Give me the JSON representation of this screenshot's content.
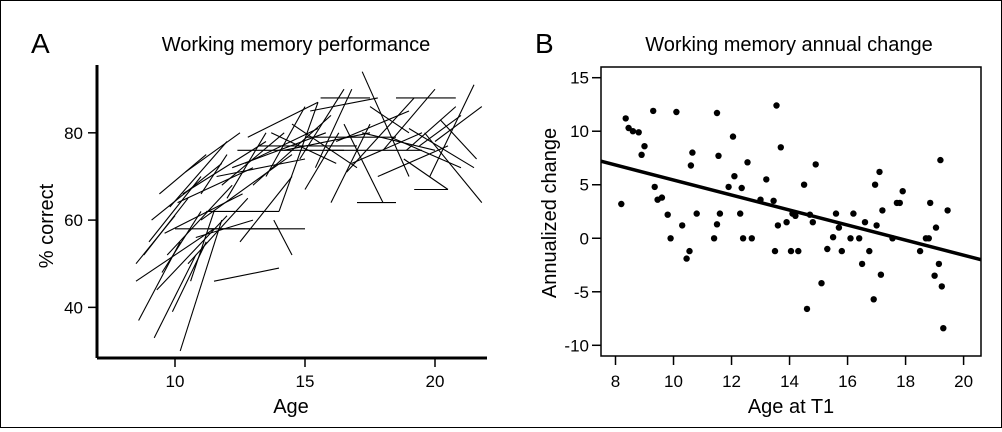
{
  "chart_data": [
    {
      "type": "line",
      "panel_label": "A",
      "title": "Working memory performance",
      "xlabel": "Age",
      "ylabel": "% correct",
      "xlim": [
        7,
        22
      ],
      "ylim": [
        30,
        96
      ],
      "xticks": [
        10,
        15,
        20
      ],
      "yticks": [
        40,
        60,
        80
      ],
      "series_style": "individual subject trajectories (spaghetti plot)",
      "segments": [
        [
          8.5,
          50,
          10.0,
          61
        ],
        [
          8.5,
          46,
          11.5,
          58
        ],
        [
          8.8,
          52,
          10.5,
          65
        ],
        [
          8.6,
          37,
          10.2,
          55
        ],
        [
          9.0,
          55,
          11.0,
          70
        ],
        [
          9.1,
          60,
          11.8,
          73
        ],
        [
          9.2,
          33,
          10.8,
          52
        ],
        [
          9.3,
          44,
          12.0,
          61
        ],
        [
          9.5,
          48,
          11.0,
          62
        ],
        [
          9.6,
          57,
          12.6,
          66
        ],
        [
          9.7,
          52,
          12.2,
          68
        ],
        [
          9.8,
          63,
          12.0,
          78
        ],
        [
          9.9,
          39,
          11.2,
          55
        ],
        [
          10.0,
          58,
          14.0,
          58
        ],
        [
          10.1,
          64,
          13.0,
          72
        ],
        [
          10.2,
          30,
          11.8,
          60
        ],
        [
          10.3,
          66,
          13.5,
          78
        ],
        [
          10.4,
          71,
          12.5,
          80
        ],
        [
          10.5,
          50,
          12.8,
          65
        ],
        [
          10.6,
          46,
          11.5,
          62
        ],
        [
          10.8,
          56,
          13.0,
          60
        ],
        [
          11.0,
          60,
          14.5,
          75
        ],
        [
          11.2,
          62,
          14.0,
          62
        ],
        [
          11.3,
          58,
          15.0,
          58
        ],
        [
          11.5,
          46,
          14.0,
          49
        ],
        [
          11.6,
          70,
          15.0,
          74
        ],
        [
          11.8,
          68,
          14.2,
          80
        ],
        [
          12.0,
          65,
          13.5,
          80
        ],
        [
          12.2,
          72,
          15.8,
          80
        ],
        [
          12.4,
          76,
          16.5,
          76
        ],
        [
          12.5,
          55,
          14.5,
          70
        ],
        [
          12.7,
          73,
          15.5,
          81
        ],
        [
          13.0,
          68,
          16.0,
          84
        ],
        [
          13.2,
          77,
          17.0,
          77
        ],
        [
          13.5,
          70,
          15.0,
          86
        ],
        [
          13.7,
          80,
          16.2,
          73
        ],
        [
          14.0,
          62,
          15.5,
          87
        ],
        [
          14.2,
          76,
          17.5,
          80
        ],
        [
          14.5,
          82,
          17.0,
          72
        ],
        [
          14.8,
          74,
          16.5,
          90
        ],
        [
          15.0,
          79,
          18.5,
          79
        ],
        [
          15.2,
          85,
          17.8,
          88
        ],
        [
          15.4,
          72,
          16.8,
          90
        ],
        [
          15.6,
          88,
          17.5,
          88
        ],
        [
          15.8,
          76,
          19.5,
          76
        ],
        [
          16.0,
          64,
          17.5,
          82
        ],
        [
          16.2,
          78,
          19.0,
          85
        ],
        [
          16.5,
          82,
          18.0,
          64
        ],
        [
          16.8,
          73,
          19.5,
          80
        ],
        [
          17.0,
          64,
          18.5,
          64
        ],
        [
          17.2,
          80,
          20.0,
          76
        ],
        [
          17.5,
          86,
          19.0,
          80
        ],
        [
          17.8,
          70,
          20.5,
          77
        ],
        [
          18.0,
          76,
          20.0,
          90
        ],
        [
          18.3,
          79,
          21.0,
          72
        ],
        [
          18.5,
          88,
          20.8,
          88
        ],
        [
          18.8,
          74,
          20.5,
          67
        ],
        [
          19.0,
          81,
          21.5,
          72
        ],
        [
          19.2,
          67,
          20.5,
          67
        ],
        [
          19.4,
          77,
          21.0,
          84
        ],
        [
          19.6,
          80,
          21.8,
          64
        ],
        [
          19.8,
          70,
          21.5,
          91
        ],
        [
          20.0,
          78,
          21.8,
          86
        ],
        [
          20.2,
          83,
          21.6,
          74
        ],
        [
          17.2,
          94,
          19.0,
          70
        ],
        [
          13.8,
          60,
          14.5,
          52
        ],
        [
          11.0,
          66,
          12.0,
          75
        ],
        [
          9.4,
          66,
          11.2,
          75
        ],
        [
          12.8,
          79,
          15.5,
          87
        ],
        [
          15.0,
          67,
          16.3,
          80
        ],
        [
          16.6,
          71,
          19.2,
          88
        ],
        [
          18.9,
          76,
          20.8,
          86
        ]
      ]
    },
    {
      "type": "scatter",
      "panel_label": "B",
      "title": "Working memory annual change",
      "xlabel": "Age at T1",
      "ylabel": "Annualized change",
      "xlim": [
        7.5,
        20.6
      ],
      "ylim": [
        -11,
        16
      ],
      "xticks": [
        8,
        10,
        12,
        14,
        16,
        18,
        20
      ],
      "yticks": [
        -10,
        -5,
        0,
        5,
        10,
        15
      ],
      "fit_line": {
        "x": [
          7.5,
          20.6
        ],
        "y": [
          7.2,
          -2.0
        ]
      },
      "points": [
        [
          8.2,
          3.2
        ],
        [
          8.35,
          11.2
        ],
        [
          8.45,
          10.3
        ],
        [
          8.6,
          10.0
        ],
        [
          8.8,
          9.9
        ],
        [
          8.9,
          7.8
        ],
        [
          9.0,
          8.6
        ],
        [
          9.3,
          11.9
        ],
        [
          9.35,
          4.8
        ],
        [
          9.45,
          3.6
        ],
        [
          9.6,
          3.8
        ],
        [
          9.8,
          2.2
        ],
        [
          9.9,
          0.0
        ],
        [
          10.1,
          11.8
        ],
        [
          10.3,
          1.2
        ],
        [
          10.45,
          -1.9
        ],
        [
          10.55,
          -1.2
        ],
        [
          10.6,
          6.8
        ],
        [
          10.65,
          8.0
        ],
        [
          10.8,
          2.3
        ],
        [
          11.4,
          0.0
        ],
        [
          11.5,
          11.7
        ],
        [
          11.55,
          7.7
        ],
        [
          11.5,
          1.3
        ],
        [
          11.6,
          2.3
        ],
        [
          11.9,
          4.8
        ],
        [
          12.05,
          9.5
        ],
        [
          12.1,
          5.8
        ],
        [
          12.3,
          2.3
        ],
        [
          12.35,
          4.7
        ],
        [
          12.4,
          0.0
        ],
        [
          12.55,
          7.1
        ],
        [
          12.7,
          0.0
        ],
        [
          13.0,
          3.6
        ],
        [
          13.2,
          5.5
        ],
        [
          13.45,
          3.5
        ],
        [
          13.55,
          12.4
        ],
        [
          13.7,
          8.5
        ],
        [
          13.6,
          1.2
        ],
        [
          13.5,
          -1.2
        ],
        [
          13.9,
          1.5
        ],
        [
          14.1,
          2.3
        ],
        [
          14.05,
          -1.2
        ],
        [
          14.2,
          2.1
        ],
        [
          14.3,
          -1.2
        ],
        [
          14.5,
          5.0
        ],
        [
          14.6,
          -6.6
        ],
        [
          14.7,
          2.2
        ],
        [
          14.8,
          1.5
        ],
        [
          14.9,
          6.9
        ],
        [
          15.1,
          -4.2
        ],
        [
          15.3,
          -1.0
        ],
        [
          15.5,
          0.1
        ],
        [
          15.6,
          2.3
        ],
        [
          15.7,
          1.0
        ],
        [
          15.8,
          -1.2
        ],
        [
          16.1,
          0.0
        ],
        [
          16.2,
          2.3
        ],
        [
          16.4,
          0.0
        ],
        [
          16.5,
          -2.4
        ],
        [
          16.6,
          1.5
        ],
        [
          16.75,
          -1.2
        ],
        [
          16.9,
          -5.7
        ],
        [
          16.95,
          5.0
        ],
        [
          17.0,
          1.2
        ],
        [
          17.1,
          6.2
        ],
        [
          17.15,
          -3.4
        ],
        [
          17.2,
          2.6
        ],
        [
          17.55,
          0.0
        ],
        [
          17.7,
          3.3
        ],
        [
          17.8,
          3.3
        ],
        [
          17.9,
          4.4
        ],
        [
          18.5,
          -1.2
        ],
        [
          18.7,
          0.0
        ],
        [
          18.8,
          0.0
        ],
        [
          18.85,
          3.3
        ],
        [
          19.0,
          -3.5
        ],
        [
          19.05,
          1.0
        ],
        [
          19.15,
          -2.4
        ],
        [
          19.2,
          7.3
        ],
        [
          19.25,
          -4.5
        ],
        [
          19.3,
          -8.4
        ],
        [
          19.45,
          2.6
        ]
      ]
    }
  ]
}
